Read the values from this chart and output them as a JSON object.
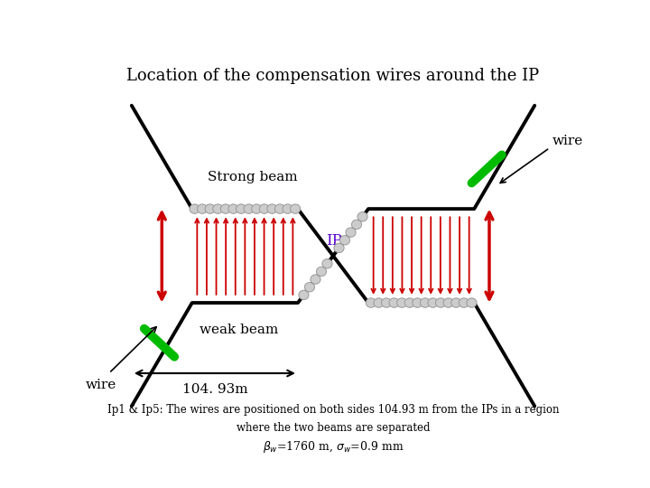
{
  "title": "Location of the compensation wires around the IP",
  "title_fontsize": 13,
  "bottom_text_line1": "Ip1 & Ip5: The wires are positioned on both sides 104.93 m from the IPs in a region",
  "bottom_text_line2": "where the two beams are separated",
  "label_strong": "Strong beam",
  "label_weak": "weak beam",
  "label_ip": "IP",
  "label_wire": "wire",
  "label_104": "104. 93m",
  "bg_color": "#ffffff",
  "beam_color": "#000000",
  "arrow_color": "#cc0000",
  "wire_color": "#00bb00",
  "circle_color": "#cccccc",
  "circle_edge": "#999999"
}
